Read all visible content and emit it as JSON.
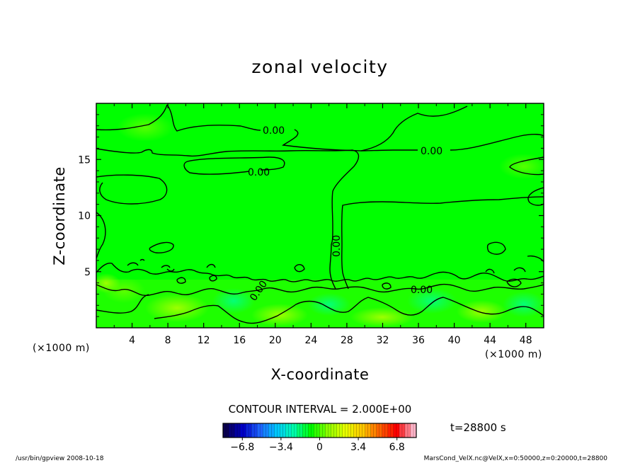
{
  "chart_data": {
    "type": "heatmap",
    "title": "zonal velocity",
    "xlabel": "X-coordinate",
    "ylabel": "Z-coordinate",
    "x_unit_label": "(×1000 m)",
    "y_unit_label": "(×1000 m)",
    "x_ticks": [
      4,
      8,
      12,
      16,
      20,
      24,
      28,
      32,
      36,
      40,
      44,
      48
    ],
    "y_ticks": [
      5,
      10,
      15
    ],
    "xlim": [
      0,
      50
    ],
    "ylim": [
      0,
      20
    ],
    "contour_interval_text": "CONTOUR INTERVAL = 2.000E+00",
    "contour_labels": [
      {
        "text": "0.00",
        "x": 19.5,
        "z": 17.7
      },
      {
        "text": "0.00",
        "x": 37.8,
        "z": 15.6
      },
      {
        "text": "0.00",
        "x": 18.0,
        "z": 13.6
      },
      {
        "text": "0.00",
        "x": 26.4,
        "z": 7.8
      },
      {
        "text": "0.00",
        "x": 18.1,
        "z": 3.3
      },
      {
        "text": "0.00",
        "x": 36.5,
        "z": 3.4
      }
    ],
    "colorbar": {
      "min": -8.5,
      "max": 8.5,
      "ticks": [
        "−6.8",
        "−3.4",
        "0",
        "3.4",
        "6.8"
      ],
      "tick_values": [
        -6.8,
        -3.4,
        0,
        3.4,
        6.8
      ],
      "colors": [
        "#0a0050",
        "#0000c8",
        "#1e64ff",
        "#00c8ff",
        "#00ffaa",
        "#00ff00",
        "#8cff00",
        "#e6ff00",
        "#ffc800",
        "#ff6400",
        "#ff0000",
        "#ffb4c8"
      ]
    },
    "time_label": "t=28800 s",
    "field_color": "#00ff00"
  },
  "footer": {
    "left": "/usr/bin/gpview  2008-10-18",
    "right": "MarsCond_VelX.nc@VelX,x=0:50000,z=0:20000,t=28800"
  }
}
